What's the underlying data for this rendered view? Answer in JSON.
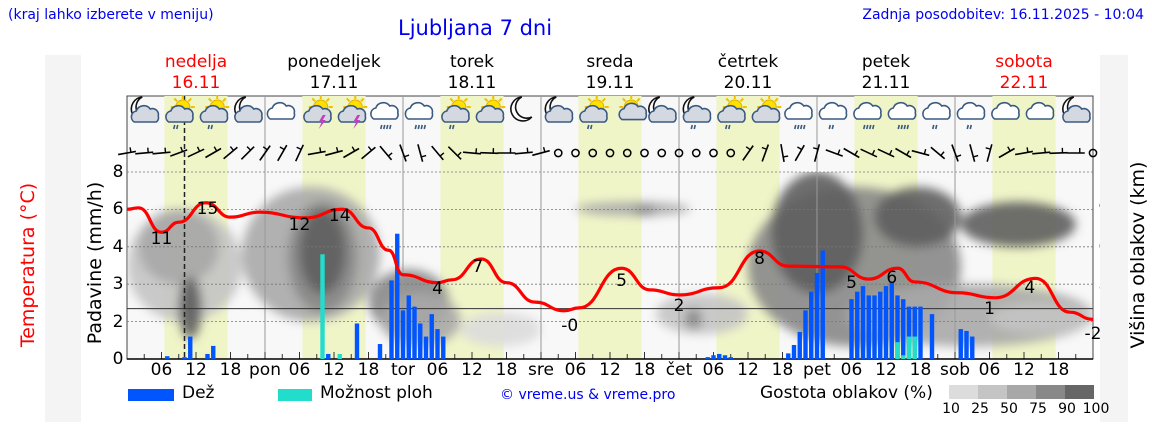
{
  "header": {
    "note": "(kraj lahko izberete v meniju)",
    "title": "Ljubljana 7 dni",
    "updated": "Zadnja posodobitev: 16.11.2025 - 10:04"
  },
  "days": [
    {
      "name": "nedelja",
      "date": "16.11",
      "color": "#ff0000"
    },
    {
      "name": "ponedeljek",
      "date": "17.11",
      "color": "#000000"
    },
    {
      "name": "torek",
      "date": "18.11",
      "color": "#000000"
    },
    {
      "name": "sreda",
      "date": "19.11",
      "color": "#000000"
    },
    {
      "name": "četrtek",
      "date": "20.11",
      "color": "#000000"
    },
    {
      "name": "petek",
      "date": "21.11",
      "color": "#000000"
    },
    {
      "name": "sobota",
      "date": "22.11",
      "color": "#ff0000"
    }
  ],
  "legend": {
    "rain": "Dež",
    "showers": "Možnost ploh",
    "copyright": "© vreme.us & vreme.pro",
    "cloud_title": "Gostota oblakov (%)",
    "cloud_levels": [
      "10",
      "25",
      "50",
      "75",
      "90",
      "100"
    ],
    "cloud_colors": [
      "#dcdcdc",
      "#c4c4c4",
      "#a8a8a8",
      "#888888",
      "#666666"
    ]
  },
  "colors": {
    "rain": "#0055ff",
    "showers": "#22ddcc",
    "temperature": "#ff0000",
    "daylight": "#f0f5c8",
    "text_link": "#0000ee"
  },
  "weather_icons": [
    "moon-cloud",
    "sun-cloud-rain",
    "sun-cloud-rain",
    "moon-cloud",
    "cloud",
    "sun-cloud-thunder",
    "sun-cloud-thunder",
    "cloud-heavy-rain",
    "cloud-heavy-rain",
    "sun-cloud-rain",
    "sun-cloud",
    "moon",
    "moon-cloud",
    "sun-cloud-rain",
    "sun-small-cloud",
    "moon-cloud",
    "moon-cloud-rain",
    "sun-cloud-rain",
    "sun-cloud",
    "cloud-heavy-rain",
    "cloud-rain",
    "cloud-heavy-rain",
    "cloud-heavy-rain",
    "cloud-rain",
    "cloud-rain",
    "cloud",
    "cloud",
    "moon-cloud"
  ],
  "chart_data": {
    "type": "meteogram",
    "current_time_hour": 10,
    "daylight_hours": [
      6.5,
      17.5
    ],
    "x_ticks": [
      "06",
      "12",
      "18",
      "pon",
      "06",
      "12",
      "18",
      "tor",
      "06",
      "12",
      "18",
      "sre",
      "06",
      "12",
      "18",
      "čet",
      "06",
      "12",
      "18",
      "pet",
      "06",
      "12",
      "18",
      "sob",
      "06",
      "12",
      "18"
    ],
    "temperature": {
      "axis_title": "Temperatura (°C)",
      "ticks": [
        "19",
        "14",
        "9",
        "3",
        "-2",
        "-7"
      ],
      "ylim": [
        -7,
        19
      ],
      "freezing_line": 0,
      "series": [
        [
          0,
          13.8
        ],
        [
          2,
          14
        ],
        [
          6,
          10.6
        ],
        [
          9,
          12
        ],
        [
          13.7,
          14.7
        ],
        [
          18,
          12.7
        ],
        [
          23,
          13.4
        ],
        [
          31,
          12.6
        ],
        [
          37.5,
          13.8
        ],
        [
          42,
          11.2
        ],
        [
          45.5,
          8.1
        ],
        [
          48,
          4.7
        ],
        [
          54,
          3.6
        ],
        [
          56.5,
          4
        ],
        [
          61.6,
          6.9
        ],
        [
          66,
          3.6
        ],
        [
          71,
          0.9
        ],
        [
          76,
          -0.3
        ],
        [
          78.6,
          0.1
        ],
        [
          86,
          5.6
        ],
        [
          91,
          2.6
        ],
        [
          96,
          1.9
        ],
        [
          103,
          2.9
        ],
        [
          110,
          8
        ],
        [
          115,
          5.9
        ],
        [
          124,
          5.8
        ],
        [
          129,
          4.1
        ],
        [
          134,
          5.6
        ],
        [
          137,
          3.7
        ],
        [
          144.5,
          2.2
        ],
        [
          151,
          1.5
        ],
        [
          158,
          4.2
        ],
        [
          164,
          -0.5
        ],
        [
          168,
          -1.5
        ]
      ],
      "labels": [
        {
          "t": 6,
          "temp": 9.6,
          "text": "11"
        },
        {
          "t": 14,
          "temp": 13.8,
          "text": "15"
        },
        {
          "t": 30,
          "temp": 11.6,
          "text": "12"
        },
        {
          "t": 37,
          "temp": 12.9,
          "text": "14"
        },
        {
          "t": 54,
          "temp": 2.7,
          "text": "4"
        },
        {
          "t": 61,
          "temp": 5.8,
          "text": "7"
        },
        {
          "t": 77,
          "temp": -2.4,
          "text": "-0"
        },
        {
          "t": 86,
          "temp": 3.9,
          "text": "5"
        },
        {
          "t": 96,
          "temp": 0.3,
          "text": "2"
        },
        {
          "t": 110,
          "temp": 6.9,
          "text": "8"
        },
        {
          "t": 126,
          "temp": 3.5,
          "text": "5"
        },
        {
          "t": 133,
          "temp": 4.3,
          "text": "6"
        },
        {
          "t": 150,
          "temp": 0,
          "text": "1"
        },
        {
          "t": 157,
          "temp": 2.9,
          "text": "4"
        },
        {
          "t": 168,
          "temp": -3.5,
          "text": "-2"
        }
      ]
    },
    "precipitation": {
      "axis_title": "Padavine (mm/h)",
      "ticks": [
        "8",
        "6",
        "4",
        "3",
        "2",
        "0"
      ],
      "bars": [
        {
          "t": 7,
          "v": 0.15,
          "kind": "rain"
        },
        {
          "t": 10,
          "v": 0.1,
          "kind": "rain"
        },
        {
          "t": 11,
          "v": 1.2,
          "kind": "rain"
        },
        {
          "t": 14,
          "v": 0.27,
          "kind": "rain"
        },
        {
          "t": 15,
          "v": 0.7,
          "kind": "rain"
        },
        {
          "t": 34,
          "v": 3.8,
          "kind": "showers"
        },
        {
          "t": 35,
          "v": 0.27,
          "kind": "rain"
        },
        {
          "t": 37,
          "v": 0.27,
          "kind": "showers"
        },
        {
          "t": 40,
          "v": 1.9,
          "kind": "rain"
        },
        {
          "t": 44,
          "v": 0.8,
          "kind": "rain"
        },
        {
          "t": 46,
          "v": 3.1,
          "kind": "rain"
        },
        {
          "t": 47,
          "v": 4.7,
          "kind": "rain"
        },
        {
          "t": 48,
          "v": 2.3,
          "kind": "rain"
        },
        {
          "t": 49,
          "v": 2.7,
          "kind": "rain"
        },
        {
          "t": 50,
          "v": 2.4,
          "kind": "rain"
        },
        {
          "t": 51,
          "v": 1.9,
          "kind": "rain"
        },
        {
          "t": 52,
          "v": 1.2,
          "kind": "rain"
        },
        {
          "t": 53,
          "v": 2.2,
          "kind": "rain"
        },
        {
          "t": 54,
          "v": 1.6,
          "kind": "rain"
        },
        {
          "t": 55,
          "v": 1.2,
          "kind": "rain"
        },
        {
          "t": 101,
          "v": 0.1,
          "kind": "rain"
        },
        {
          "t": 102,
          "v": 0.2,
          "kind": "rain"
        },
        {
          "t": 103,
          "v": 0.27,
          "kind": "rain"
        },
        {
          "t": 104,
          "v": 0.2,
          "kind": "rain"
        },
        {
          "t": 105,
          "v": 0.1,
          "kind": "rain"
        },
        {
          "t": 115,
          "v": 0.3,
          "kind": "rain"
        },
        {
          "t": 116,
          "v": 0.75,
          "kind": "rain"
        },
        {
          "t": 117,
          "v": 1.45,
          "kind": "rain"
        },
        {
          "t": 118,
          "v": 2.3,
          "kind": "rain"
        },
        {
          "t": 119,
          "v": 2.8,
          "kind": "rain"
        },
        {
          "t": 120,
          "v": 3.3,
          "kind": "rain"
        },
        {
          "t": 121,
          "v": 3.9,
          "kind": "rain"
        },
        {
          "t": 126,
          "v": 2.6,
          "kind": "rain"
        },
        {
          "t": 127,
          "v": 2.8,
          "kind": "rain"
        },
        {
          "t": 128,
          "v": 2.95,
          "kind": "rain"
        },
        {
          "t": 129,
          "v": 2.7,
          "kind": "rain"
        },
        {
          "t": 130,
          "v": 2.7,
          "kind": "rain"
        },
        {
          "t": 131,
          "v": 2.8,
          "kind": "rain"
        },
        {
          "t": 132,
          "v": 2.95,
          "kind": "rain"
        },
        {
          "t": 133,
          "v": 3.05,
          "kind": "rain"
        },
        {
          "t": 134,
          "v": 2.7,
          "kind": "rain",
          "showers": 0.9
        },
        {
          "t": 135,
          "v": 2.6,
          "kind": "rain",
          "showers": 0.2
        },
        {
          "t": 136,
          "v": 2.4,
          "kind": "rain",
          "showers": 1.2
        },
        {
          "t": 137,
          "v": 2.4,
          "kind": "rain",
          "showers": 1.2
        },
        {
          "t": 138,
          "v": 2.4,
          "kind": "rain"
        },
        {
          "t": 140,
          "v": 2.2,
          "kind": "rain"
        },
        {
          "t": 145,
          "v": 1.6,
          "kind": "rain"
        },
        {
          "t": 146,
          "v": 1.5,
          "kind": "rain"
        },
        {
          "t": 147,
          "v": 1.2,
          "kind": "rain"
        }
      ]
    },
    "cloud_height": {
      "axis_title": "Višina oblakov (km)",
      "ticks": [
        "14",
        "9.0",
        "6.0",
        "3.5",
        "1.5",
        "0"
      ],
      "density_areas": [
        {
          "t0": 0,
          "t1": 20,
          "km0": 1.5,
          "km1": 9,
          "density": 25
        },
        {
          "t0": 2,
          "t1": 16,
          "km0": 3.5,
          "km1": 9,
          "density": 50
        },
        {
          "t0": 9,
          "t1": 13,
          "km0": 0.8,
          "km1": 4,
          "density": 90
        },
        {
          "t0": 20,
          "t1": 44,
          "km0": 1.5,
          "km1": 12,
          "density": 50
        },
        {
          "t0": 28,
          "t1": 40,
          "km0": 2,
          "km1": 10,
          "density": 75
        },
        {
          "t0": 30,
          "t1": 38,
          "km0": 3,
          "km1": 9,
          "density": 90
        },
        {
          "t0": 42,
          "t1": 56,
          "km0": 1,
          "km1": 4.5,
          "density": 75
        },
        {
          "t0": 44,
          "t1": 58,
          "km0": 0.5,
          "km1": 3,
          "density": 50
        },
        {
          "t0": 58,
          "t1": 72,
          "km0": 0.5,
          "km1": 2,
          "density": 10
        },
        {
          "t0": 78,
          "t1": 98,
          "km0": 8.5,
          "km1": 10,
          "density": 50
        },
        {
          "t0": 88,
          "t1": 92,
          "km0": 8.5,
          "km1": 9.5,
          "density": 75
        },
        {
          "t0": 92,
          "t1": 108,
          "km0": 1,
          "km1": 3,
          "density": 25
        },
        {
          "t0": 97,
          "t1": 100,
          "km0": 1.2,
          "km1": 2.2,
          "density": 75
        },
        {
          "t0": 108,
          "t1": 145,
          "km0": 0.5,
          "km1": 12,
          "density": 75
        },
        {
          "t0": 112,
          "t1": 128,
          "km0": 3,
          "km1": 14,
          "density": 90
        },
        {
          "t0": 130,
          "t1": 145,
          "km0": 6,
          "km1": 12,
          "density": 90
        },
        {
          "t0": 145,
          "t1": 165,
          "km0": 6,
          "km1": 10,
          "density": 90
        },
        {
          "t0": 125,
          "t1": 168,
          "km0": 0.5,
          "km1": 3.5,
          "density": 50
        },
        {
          "t0": 150,
          "t1": 168,
          "km0": 1,
          "km1": 2.5,
          "density": 25
        }
      ]
    },
    "wind_dir_deg": [
      260,
      265,
      265,
      250,
      245,
      240,
      230,
      225,
      215,
      210,
      205,
      260,
      255,
      240,
      230,
      320,
      340,
      345,
      320,
      315,
      275,
      272,
      270,
      265,
      255,
      null,
      null,
      null,
      null,
      null,
      null,
      null,
      null,
      null,
      null,
      null,
      215,
      200,
      350,
      210,
      195,
      290,
      300,
      295,
      295,
      300,
      285,
      310,
      340,
      345,
      195,
      240,
      260,
      265,
      268,
      270,
      null
    ]
  }
}
